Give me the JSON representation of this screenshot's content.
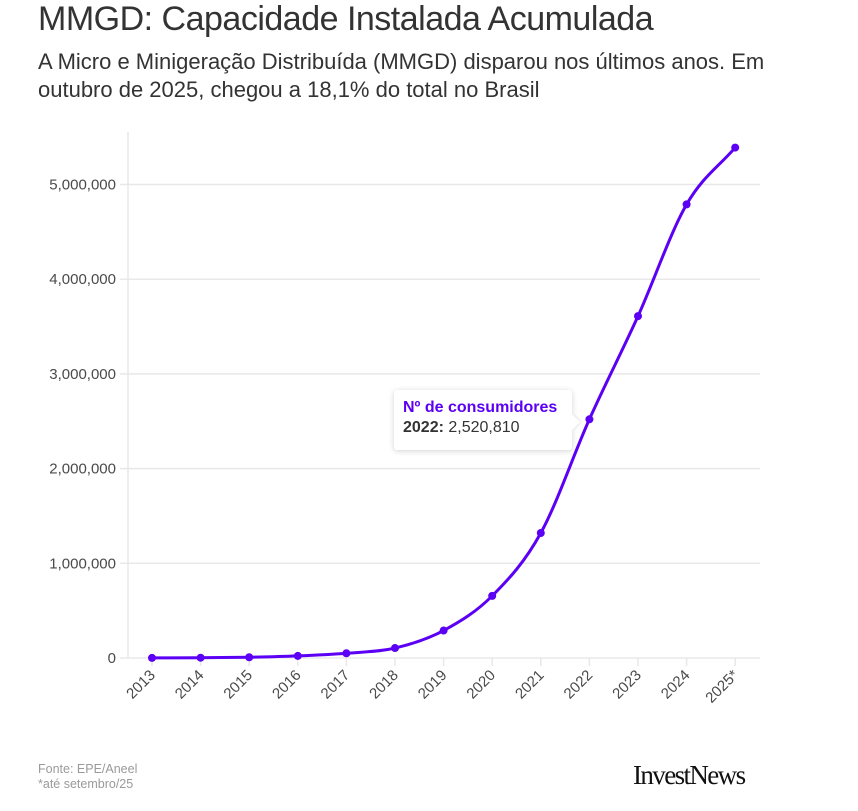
{
  "header": {
    "title": "MMGD: Capacidade Instalada Acumulada",
    "subtitle": "A Micro e Minigeração Distribuída (MMGD) disparou nos últimos anos. Em outubro de 2025, chegou a 18,1% do total no Brasil"
  },
  "tooltip": {
    "title": "Nº de consumidores",
    "year_label": "2022:",
    "value_label": "2,520,810"
  },
  "footer": {
    "source": "Fonte: EPE/Aneel",
    "note": "*até setembro/25",
    "logo": "InvestNews"
  },
  "colors": {
    "line": "#5b00f5",
    "grid": "#e8e8e8",
    "text": "#333333"
  },
  "chart_data": {
    "type": "line",
    "title": "MMGD: Capacidade Instalada Acumulada",
    "xlabel": "",
    "ylabel": "",
    "categories": [
      "2013",
      "2014",
      "2015",
      "2016",
      "2017",
      "2018",
      "2019",
      "2020",
      "2021",
      "2022",
      "2023",
      "2024",
      "2025*"
    ],
    "series": [
      {
        "name": "Nº de consumidores",
        "values": [
          1000,
          3000,
          8000,
          22000,
          50000,
          105000,
          290000,
          656000,
          1320000,
          2520810,
          3610000,
          4790000,
          5390000
        ]
      }
    ],
    "ylim": [
      0,
      5500000
    ],
    "yticks": [
      0,
      1000000,
      2000000,
      3000000,
      4000000,
      5000000
    ],
    "ytick_labels": [
      "0",
      "1,000,000",
      "2,000,000",
      "3,000,000",
      "4,000,000",
      "5,000,000"
    ],
    "grid": true,
    "legend": "none",
    "highlighted_point": {
      "category": "2022",
      "value": 2520810
    }
  }
}
